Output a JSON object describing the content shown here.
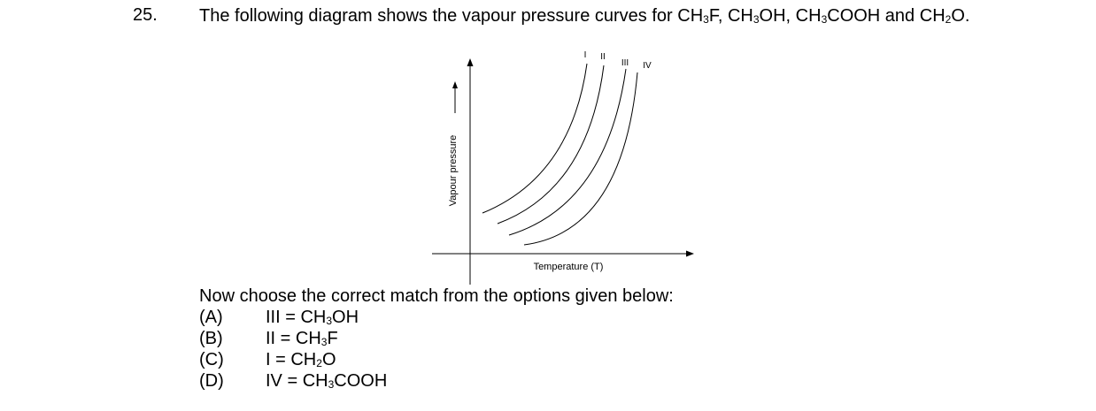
{
  "question": {
    "number": "25.",
    "stem_intro": "The following diagram shows the vapour pressure curves for ",
    "stem_sep1": ", ",
    "stem_sep2": ", ",
    "stem_and": " and",
    "stem_end": ".",
    "instruction": "Now choose the correct match from the options given below:"
  },
  "formulas": {
    "ch3f": {
      "a": "CH",
      "sub": "3",
      "b": "F"
    },
    "ch3oh": {
      "a": "CH",
      "sub": "3",
      "b": "OH"
    },
    "ch3cooh": {
      "a": "CH",
      "sub": "3",
      "b": "COOH"
    },
    "ch2o": {
      "a": "CH",
      "sub": "2",
      "b": "O"
    }
  },
  "diagram": {
    "y_axis_label": "Vapour pressure",
    "x_axis_label": "Temperature (T)",
    "curve_labels": [
      "I",
      "II",
      "III",
      "IV"
    ]
  },
  "options": [
    {
      "letter": "(A)",
      "prefix": "III = ",
      "f_a": "CH",
      "f_sub": "3",
      "f_b": "OH"
    },
    {
      "letter": "(B)",
      "prefix": "II = ",
      "f_a": "CH",
      "f_sub": "3",
      "f_b": "F"
    },
    {
      "letter": "(C)",
      "prefix": "I = ",
      "f_a": "CH",
      "f_sub": "2",
      "f_b": "O"
    },
    {
      "letter": "(D)",
      "prefix": "IV = ",
      "f_a": "CH",
      "f_sub": "3",
      "f_b": "COOH"
    }
  ]
}
